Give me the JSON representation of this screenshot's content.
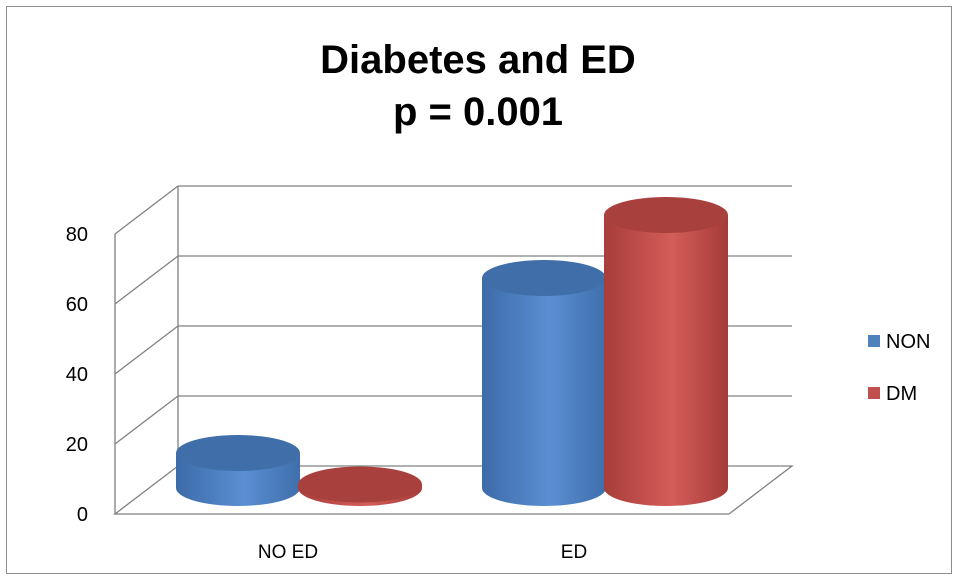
{
  "chart_data": {
    "type": "bar",
    "title": "Diabetes and ED",
    "subtitle": "p = 0.001",
    "categories": [
      "NO ED",
      "ED"
    ],
    "series": [
      {
        "name": "NON",
        "values": [
          10,
          60
        ],
        "color": "#4f81bd"
      },
      {
        "name": "DM",
        "values": [
          1,
          78
        ],
        "color": "#c0504d"
      }
    ],
    "ylim": [
      0,
      80
    ],
    "yticks": [
      0,
      20,
      40,
      60,
      80
    ],
    "grid": true,
    "legend": "right",
    "style": "3d-cylinder"
  }
}
